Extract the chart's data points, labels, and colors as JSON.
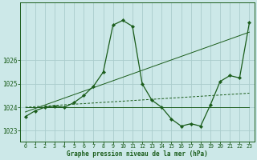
{
  "title": "Graphe pression niveau de la mer (hPa)",
  "background_color": "#cce8e8",
  "grid_color": "#aacccc",
  "line_color": "#1a5c1a",
  "xlim": [
    -0.5,
    23.5
  ],
  "ylim": [
    1022.55,
    1028.45
  ],
  "yticks": [
    1023,
    1024,
    1025,
    1026
  ],
  "xticks": [
    0,
    1,
    2,
    3,
    4,
    5,
    6,
    7,
    8,
    9,
    10,
    11,
    12,
    13,
    14,
    15,
    16,
    17,
    18,
    19,
    20,
    21,
    22,
    23
  ],
  "main_x": [
    0,
    1,
    2,
    3,
    4,
    5,
    6,
    7,
    8,
    9,
    10,
    11,
    12,
    13,
    14,
    15,
    16,
    17,
    18,
    19,
    20,
    21,
    22,
    23
  ],
  "main_y": [
    1023.6,
    1023.85,
    1024.0,
    1024.05,
    1024.0,
    1024.2,
    1024.5,
    1024.9,
    1025.5,
    1027.5,
    1027.7,
    1027.45,
    1025.0,
    1024.3,
    1024.0,
    1023.5,
    1023.2,
    1023.3,
    1023.2,
    1024.1,
    1025.1,
    1025.35,
    1025.25,
    1027.6
  ],
  "line1_x": [
    0,
    23
  ],
  "line1_y": [
    1024.0,
    1024.0
  ],
  "line2_x": [
    0,
    23
  ],
  "line2_y": [
    1023.8,
    1027.2
  ],
  "line3_x": [
    0,
    23
  ],
  "line3_y": [
    1024.0,
    1024.6
  ]
}
